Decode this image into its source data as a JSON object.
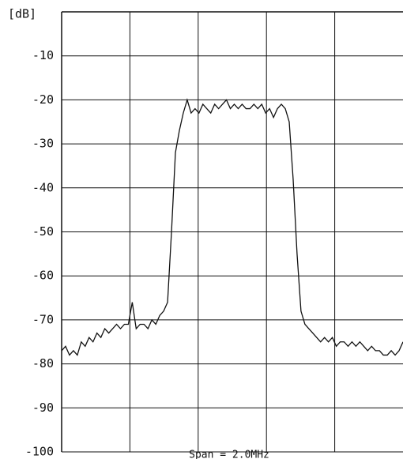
{
  "chart_data": {
    "type": "line",
    "y_label": "[dB]",
    "x_label": "Span = 2.0MHz",
    "ylim": [
      -100,
      0
    ],
    "yticks": [
      -10,
      -20,
      -30,
      -40,
      -50,
      -60,
      -70,
      -80,
      -90,
      -100
    ],
    "grid": true,
    "series": [
      {
        "color": "#111111",
        "values": [
          -77,
          -76,
          -78,
          -77,
          -78,
          -75,
          -76,
          -74,
          -75,
          -73,
          -74,
          -72,
          -73,
          -72,
          -71,
          -72,
          -71,
          -71,
          -66,
          -72,
          -71,
          -71,
          -72,
          -70,
          -71,
          -69,
          -68,
          -66,
          -50,
          -32,
          -27,
          -23,
          -20,
          -23,
          -22,
          -23,
          -21,
          -22,
          -23,
          -21,
          -22,
          -21,
          -20,
          -22,
          -21,
          -22,
          -21,
          -22,
          -22,
          -21,
          -22,
          -21,
          -23,
          -22,
          -24,
          -22,
          -21,
          -22,
          -25,
          -38,
          -55,
          -68,
          -71,
          -72,
          -73,
          -74,
          -75,
          -74,
          -75,
          -74,
          -76,
          -75,
          -75,
          -76,
          -75,
          -76,
          -75,
          -76,
          -77,
          -76,
          -77,
          -77,
          -78,
          -78,
          -77,
          -78,
          -77,
          -75
        ]
      }
    ]
  }
}
